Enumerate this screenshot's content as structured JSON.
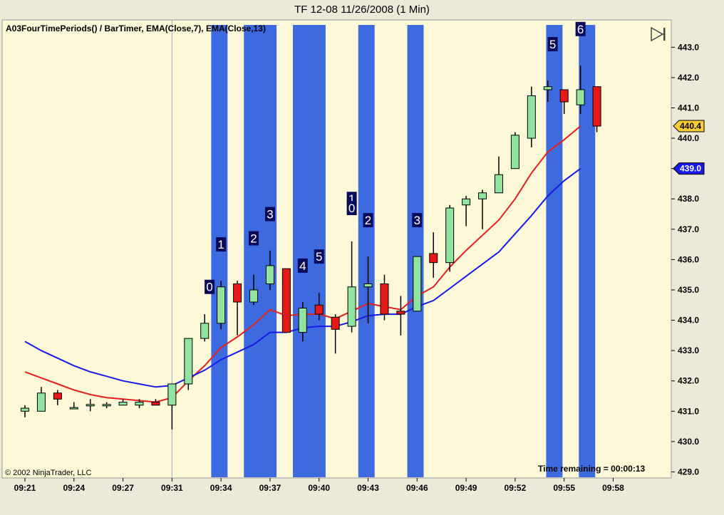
{
  "window": {
    "title": "TF 12-08  11/26/2008 (1 Min)"
  },
  "indicator_label": "A03FourTimePeriods() / BarTimer, EMA(Close,7), EMA(Close,13)",
  "copyright": "© 2002 NinjaTrader, LLC",
  "timer_text": "Time remaining = 00:00:13",
  "play_icon": "play-step-icon",
  "colors": {
    "background": "#fdf8d8",
    "panel": "#ece9d8",
    "period_band": "#3e6ae0",
    "ema7": "#e32020",
    "ema13": "#1a1ae6",
    "up_candle": "#90e4a0",
    "down_candle": "#e81818",
    "last_price_tag": "#ffcc33",
    "ema_tag": "#1a1ae6",
    "count_label_bg": "#0a0a5a",
    "count_label_fg": "#ffffff"
  },
  "chart_data": {
    "type": "candlestick",
    "title": "TF 12-08  11/26/2008 (1 Min)",
    "ylim": [
      428.8,
      443.9
    ],
    "y_ticks": [
      "443.0",
      "442.0",
      "441.0",
      "440.0",
      "439.0",
      "438.0",
      "437.0",
      "436.0",
      "435.0",
      "434.0",
      "433.0",
      "432.0",
      "431.0",
      "430.0",
      "429.0"
    ],
    "x_ticks": [
      {
        "bar": 0,
        "label": "09:21"
      },
      {
        "bar": 3,
        "label": "09:24"
      },
      {
        "bar": 6,
        "label": "09:27"
      },
      {
        "bar": 9,
        "label": "09:31"
      },
      {
        "bar": 12,
        "label": "09:34"
      },
      {
        "bar": 15,
        "label": "09:37"
      },
      {
        "bar": 18,
        "label": "09:40"
      },
      {
        "bar": 21,
        "label": "09:43"
      },
      {
        "bar": 24,
        "label": "09:46"
      },
      {
        "bar": 27,
        "label": "09:49"
      },
      {
        "bar": 30,
        "label": "09:52"
      },
      {
        "bar": 33,
        "label": "09:55"
      },
      {
        "bar": 36,
        "label": "09:58"
      }
    ],
    "bars": [
      {
        "o": 431.0,
        "h": 431.2,
        "l": 430.8,
        "c": 431.1
      },
      {
        "o": 431.0,
        "h": 431.8,
        "l": 431.0,
        "c": 431.6
      },
      {
        "o": 431.6,
        "h": 431.7,
        "l": 431.2,
        "c": 431.4
      },
      {
        "o": 431.1,
        "h": 431.3,
        "l": 431.1,
        "c": 431.1
      },
      {
        "o": 431.2,
        "h": 431.4,
        "l": 431.0,
        "c": 431.2
      },
      {
        "o": 431.2,
        "h": 431.3,
        "l": 431.1,
        "c": 431.2
      },
      {
        "o": 431.2,
        "h": 431.4,
        "l": 431.2,
        "c": 431.3
      },
      {
        "o": 431.2,
        "h": 431.4,
        "l": 431.1,
        "c": 431.3
      },
      {
        "o": 431.3,
        "h": 431.4,
        "l": 431.2,
        "c": 431.2
      },
      {
        "o": 431.2,
        "h": 431.9,
        "l": 430.4,
        "c": 431.9
      },
      {
        "o": 431.9,
        "h": 433.4,
        "l": 431.7,
        "c": 433.4
      },
      {
        "o": 433.4,
        "h": 434.2,
        "l": 433.3,
        "c": 433.9
      },
      {
        "o": 433.9,
        "h": 435.3,
        "l": 433.7,
        "c": 435.1
      },
      {
        "o": 435.2,
        "h": 435.3,
        "l": 433.5,
        "c": 434.6
      },
      {
        "o": 434.6,
        "h": 435.5,
        "l": 434.5,
        "c": 435.0
      },
      {
        "o": 435.2,
        "h": 436.3,
        "l": 435.0,
        "c": 435.8
      },
      {
        "o": 435.7,
        "h": 435.7,
        "l": 433.6,
        "c": 433.6
      },
      {
        "o": 433.6,
        "h": 434.6,
        "l": 433.3,
        "c": 434.4
      },
      {
        "o": 434.5,
        "h": 434.9,
        "l": 434.0,
        "c": 434.2
      },
      {
        "o": 434.1,
        "h": 434.2,
        "l": 432.9,
        "c": 433.7
      },
      {
        "o": 433.8,
        "h": 436.6,
        "l": 433.6,
        "c": 435.1
      },
      {
        "o": 435.1,
        "h": 436.1,
        "l": 433.9,
        "c": 435.2
      },
      {
        "o": 435.2,
        "h": 435.5,
        "l": 434.0,
        "c": 434.2
      },
      {
        "o": 434.3,
        "h": 434.8,
        "l": 433.5,
        "c": 434.2
      },
      {
        "o": 434.3,
        "h": 436.1,
        "l": 434.3,
        "c": 436.1
      },
      {
        "o": 436.2,
        "h": 436.9,
        "l": 435.4,
        "c": 435.9
      },
      {
        "o": 435.9,
        "h": 437.8,
        "l": 435.6,
        "c": 437.7
      },
      {
        "o": 437.8,
        "h": 438.1,
        "l": 437.1,
        "c": 438.0
      },
      {
        "o": 438.0,
        "h": 438.3,
        "l": 437.0,
        "c": 438.2
      },
      {
        "o": 438.2,
        "h": 439.4,
        "l": 438.2,
        "c": 438.8
      },
      {
        "o": 439.0,
        "h": 440.2,
        "l": 439.0,
        "c": 440.1
      },
      {
        "o": 440.0,
        "h": 441.7,
        "l": 439.7,
        "c": 441.4
      },
      {
        "o": 441.6,
        "h": 441.9,
        "l": 441.2,
        "c": 441.7
      },
      {
        "o": 441.6,
        "h": 441.6,
        "l": 440.8,
        "c": 441.2
      },
      {
        "o": 441.1,
        "h": 442.4,
        "l": 440.8,
        "c": 441.6
      },
      {
        "o": 441.7,
        "h": 441.7,
        "l": 440.2,
        "c": 440.4
      }
    ],
    "series": [
      {
        "name": "EMA(Close,7)",
        "values": [
          432.3,
          432.1,
          431.9,
          431.7,
          431.55,
          431.45,
          431.4,
          431.35,
          431.3,
          431.45,
          432.0,
          432.5,
          433.1,
          433.45,
          433.85,
          434.35,
          434.15,
          434.2,
          434.2,
          434.05,
          434.3,
          434.55,
          434.45,
          434.35,
          434.8,
          435.1,
          435.75,
          436.3,
          436.8,
          437.3,
          438.0,
          438.85,
          439.55,
          439.95,
          440.4,
          null
        ]
      },
      {
        "name": "EMA(Close,13)",
        "values": [
          433.3,
          433.0,
          432.75,
          432.5,
          432.3,
          432.15,
          432.0,
          431.9,
          431.8,
          431.85,
          432.1,
          432.35,
          432.7,
          432.95,
          433.2,
          433.6,
          433.6,
          433.75,
          433.8,
          433.8,
          433.95,
          434.15,
          434.2,
          434.2,
          434.45,
          434.65,
          435.05,
          435.45,
          435.85,
          436.25,
          436.85,
          437.45,
          438.1,
          438.6,
          439.0,
          null
        ]
      }
    ],
    "period_bands": [
      {
        "start_bar": 11.4,
        "end_bar": 12.4
      },
      {
        "start_bar": 13.4,
        "end_bar": 15.4
      },
      {
        "start_bar": 16.4,
        "end_bar": 18.4
      },
      {
        "start_bar": 20.4,
        "end_bar": 21.4
      },
      {
        "start_bar": 23.4,
        "end_bar": 24.4
      },
      {
        "start_bar": 31.9,
        "end_bar": 32.9
      },
      {
        "start_bar": 33.9,
        "end_bar": 34.9
      }
    ],
    "count_labels": [
      {
        "text": "0",
        "bar": 11.3,
        "y": 435.1
      },
      {
        "text": "1",
        "bar": 12.0,
        "y": 436.5
      },
      {
        "text": "2",
        "bar": 14.0,
        "y": 436.7
      },
      {
        "text": "3",
        "bar": 15.0,
        "y": 437.5
      },
      {
        "text": "4",
        "bar": 17.0,
        "y": 435.8
      },
      {
        "text": "5",
        "bar": 18.0,
        "y": 436.1
      },
      {
        "text": "1",
        "bar": 20.0,
        "y": 438.0
      },
      {
        "text": "0",
        "bar": 20.0,
        "y": 437.7
      },
      {
        "text": "2",
        "bar": 21.0,
        "y": 437.3
      },
      {
        "text": "3",
        "bar": 24.0,
        "y": 437.3
      },
      {
        "text": "5",
        "bar": 32.3,
        "y": 443.1
      },
      {
        "text": "6",
        "bar": 34.0,
        "y": 443.6
      }
    ],
    "price_tags": [
      {
        "label": "440.4",
        "value": 440.4,
        "kind": "last"
      },
      {
        "label": "439.0",
        "value": 439.0,
        "kind": "ema13"
      }
    ],
    "grid": false
  }
}
